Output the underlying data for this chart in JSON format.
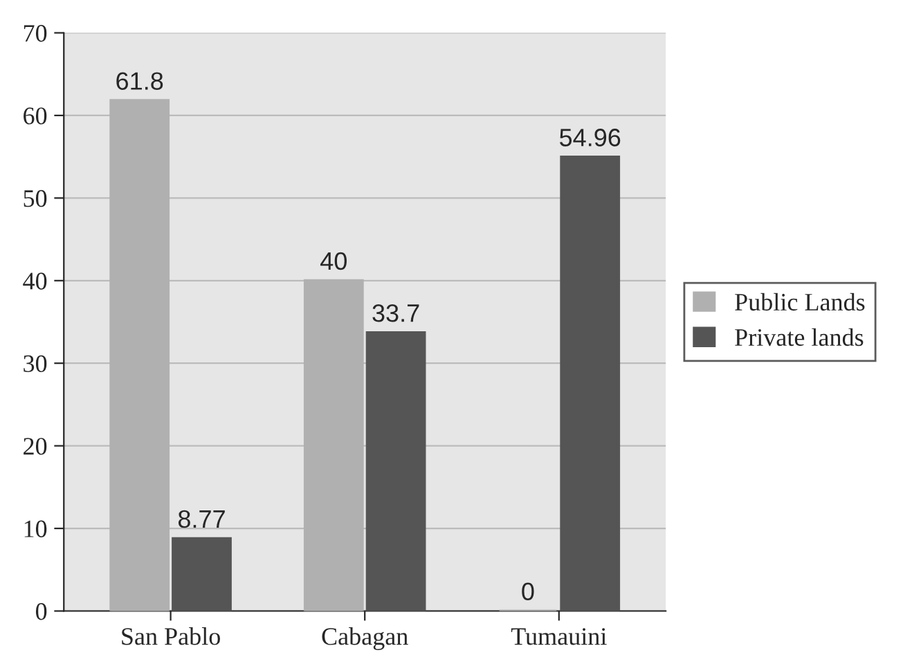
{
  "chart_data": {
    "type": "bar",
    "categories": [
      "San Pablo",
      "Cabagan",
      "Tumauini"
    ],
    "series": [
      {
        "name": "Public Lands",
        "color": "#b0b0b0",
        "values": [
          61.8,
          40,
          0
        ]
      },
      {
        "name": "Private lands",
        "color": "#555555",
        "values": [
          8.77,
          33.7,
          54.96
        ]
      }
    ],
    "ylim": [
      0,
      70
    ],
    "yticks": [
      0,
      10,
      20,
      30,
      40,
      50,
      60,
      70
    ],
    "grid": "y",
    "legend": "right",
    "data_labels": true
  }
}
